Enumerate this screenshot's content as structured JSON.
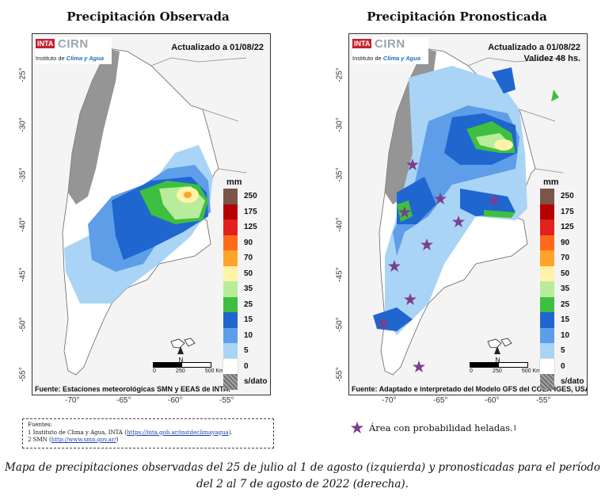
{
  "left_map": {
    "title": "Precipitación Observada",
    "logo": {
      "inta": "INTA",
      "cirn": "CIRN",
      "subtitle_prefix": "Instituto de ",
      "subtitle_emph": "Clima y Agua"
    },
    "updated": "Actualizado a 01/08/22",
    "source": "Fuente: Estaciones meteorológicas SMN y EEAS de INTA."
  },
  "right_map": {
    "title": "Precipitación Pronosticada",
    "logo": {
      "inta": "INTA",
      "cirn": "CIRN",
      "subtitle_prefix": "Instituto de ",
      "subtitle_emph": "Clima y Agua"
    },
    "updated": "Actualizado a 01/08/22",
    "validity": "Validez 48 hs.",
    "source": "Fuente: Adaptado e interpretado del Modelo GFS del COLA-IGES, USA."
  },
  "legend": {
    "unit": "mm",
    "levels": [
      {
        "label": "250",
        "color": "#7a5548"
      },
      {
        "label": "175",
        "color": "#b40000"
      },
      {
        "label": "125",
        "color": "#e3201b"
      },
      {
        "label": "90",
        "color": "#ff6a1a"
      },
      {
        "label": "70",
        "color": "#ffa32a"
      },
      {
        "label": "50",
        "color": "#fff3a8"
      },
      {
        "label": "35",
        "color": "#b9ec9a"
      },
      {
        "label": "25",
        "color": "#3fbf3f"
      },
      {
        "label": "15",
        "color": "#1f66cf"
      },
      {
        "label": "10",
        "color": "#5e9de8"
      },
      {
        "label": "5",
        "color": "#a9d4f5"
      },
      {
        "label": "0",
        "color": "#ffffff"
      },
      {
        "label": "s/dato",
        "color": "#8a8a8a"
      }
    ]
  },
  "scale_bar": {
    "zero": "0",
    "mid": "250",
    "end": "500 Km"
  },
  "longitude_ticks": [
    "-70°",
    "-65°",
    "-60°",
    "-55°"
  ],
  "latitude_ticks": [
    "-25°",
    "-30°",
    "-35°",
    "-40°",
    "-45°",
    "-50°",
    "-55°"
  ],
  "footnotes": {
    "heading": "Fuentes:",
    "line1_prefix": "1 Instituto de Clima y Agua, INTA (",
    "line1_link": "https://inta.gob.ar/instdeclimayagua",
    "line1_suffix": ").",
    "line2_prefix": "2 SMN (",
    "line2_link": "http://www.smn.gov.ar/",
    "line2_suffix": ")"
  },
  "frost_legend": {
    "label": "Área con probabilidad heladas.",
    "sup": "1",
    "color": "#7b3f8c"
  },
  "caption": {
    "line1": "Mapa de precipitaciones observadas del 25 de julio al 1 de agosto (izquierda) y pronosticadas para el período",
    "line2": "del 2 al 7 de agosto de 2022 (derecha)."
  },
  "colors": {
    "land": "#ffffff",
    "ocean": "#f4f4f4",
    "andes": "#8a8a8a",
    "frost_star": "#7b3f8c"
  }
}
